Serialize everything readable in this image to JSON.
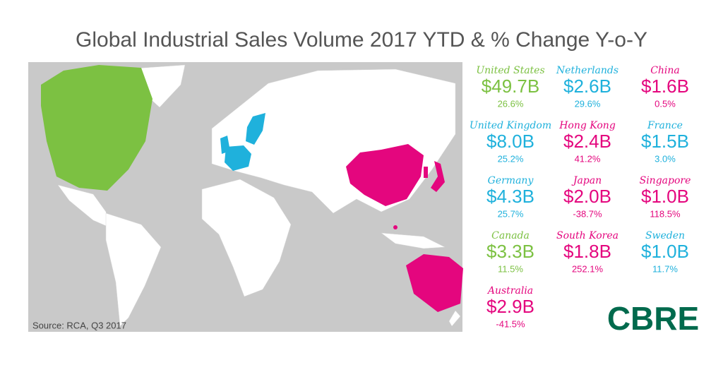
{
  "title": "Global Industrial Sales Volume 2017 YTD & % Change Y-o-Y",
  "source": "Source: RCA, Q3 2017",
  "logo": "CBRE",
  "items": [
    {
      "country": "United States",
      "volume": "$49.7B",
      "change": "26.6%",
      "color": "#7cc142"
    },
    {
      "country": "Netherlands",
      "volume": "$2.6B",
      "change": "29.6%",
      "color": "#1fb1dc"
    },
    {
      "country": "China",
      "volume": "$1.6B",
      "change": "0.5%",
      "color": "#e4067e"
    },
    {
      "country": "United Kingdom",
      "volume": "$8.0B",
      "change": "25.2%",
      "color": "#1fb1dc"
    },
    {
      "country": "Hong Kong",
      "volume": "$2.4B",
      "change": "41.2%",
      "color": "#e4067e"
    },
    {
      "country": "France",
      "volume": "$1.5B",
      "change": "3.0%",
      "color": "#1fb1dc"
    },
    {
      "country": "Germany",
      "volume": "$4.3B",
      "change": "25.7%",
      "color": "#1fb1dc"
    },
    {
      "country": "Japan",
      "volume": "$2.0B",
      "change": "-38.7%",
      "color": "#e4067e"
    },
    {
      "country": "Singapore",
      "volume": "$1.0B",
      "change": "118.5%",
      "color": "#e4067e"
    },
    {
      "country": "Canada",
      "volume": "$3.3B",
      "change": "11.5%",
      "color": "#7cc142"
    },
    {
      "country": "South Korea",
      "volume": "$1.8B",
      "change": "252.1%",
      "color": "#e4067e"
    },
    {
      "country": "Sweden",
      "volume": "$1.0B",
      "change": "11.7%",
      "color": "#1fb1dc"
    },
    {
      "country": "Australia",
      "volume": "$2.9B",
      "change": "-41.5%",
      "color": "#e4067e"
    }
  ]
}
